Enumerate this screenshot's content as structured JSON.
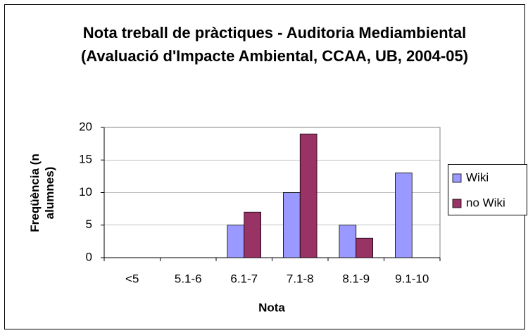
{
  "chart_data": {
    "type": "bar",
    "title": "Nota treball de pràctiques - Auditoria Mediambiental (Avaluació d'Impacte Ambiental, CCAA, UB, 2004-05)",
    "x_label": "Nota",
    "y_label": "Freqüència (n alumnes)",
    "categories": [
      "<5",
      "5.1-6",
      "6.1-7",
      "7.1-8",
      "8.1-9",
      "9.1-10"
    ],
    "series": [
      {
        "name": "Wiki",
        "color": "#9999ff",
        "values": [
          0,
          0,
          5,
          10,
          5,
          13
        ]
      },
      {
        "name": "no Wiki",
        "color": "#993366",
        "values": [
          0,
          0,
          7,
          19,
          3,
          0
        ]
      }
    ],
    "ylim": [
      0,
      20
    ],
    "yticks": [
      0,
      5,
      10,
      15,
      20
    ],
    "grid": true,
    "legend": "right"
  }
}
